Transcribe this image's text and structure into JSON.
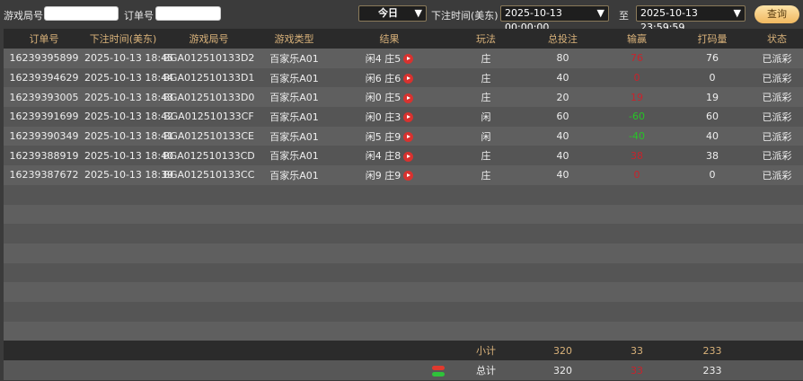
{
  "filters": {
    "game_round_label": "游戏局号",
    "game_round_value": "",
    "order_label": "订单号",
    "order_value": "",
    "period": "今日",
    "bet_time_label": "下注时间(美东)",
    "start": "2025-10-13 00:00:00",
    "to_label": "至",
    "end": "2025-10-13 23:59:59",
    "query_button": "查询"
  },
  "columns": [
    "订单号",
    "下注时间(美东)",
    "游戏局号",
    "游戏类型",
    "结果",
    "玩法",
    "总投注",
    "输赢",
    "打码量",
    "状态"
  ],
  "rows": [
    {
      "order": "16239395899",
      "time": "2025-10-13 18:45",
      "round": "BGA012510133D2",
      "type": "百家乐A01",
      "result": "闲4 庄5",
      "play": "庄",
      "bet": "80",
      "win": "76",
      "valid": "76",
      "status": "已派彩"
    },
    {
      "order": "16239394629",
      "time": "2025-10-13 18:44",
      "round": "BGA012510133D1",
      "type": "百家乐A01",
      "result": "闲6 庄6",
      "play": "庄",
      "bet": "40",
      "win": "0",
      "valid": "0",
      "status": "已派彩"
    },
    {
      "order": "16239393005",
      "time": "2025-10-13 18:43",
      "round": "BGA012510133D0",
      "type": "百家乐A01",
      "result": "闲0 庄5",
      "play": "庄",
      "bet": "20",
      "win": "19",
      "valid": "19",
      "status": "已派彩"
    },
    {
      "order": "16239391699",
      "time": "2025-10-13 18:42",
      "round": "BGA012510133CF",
      "type": "百家乐A01",
      "result": "闲0 庄3",
      "play": "闲",
      "bet": "60",
      "win": "-60",
      "valid": "60",
      "status": "已派彩"
    },
    {
      "order": "16239390349",
      "time": "2025-10-13 18:41",
      "round": "BGA012510133CE",
      "type": "百家乐A01",
      "result": "闲5 庄9",
      "play": "闲",
      "bet": "40",
      "win": "-40",
      "valid": "40",
      "status": "已派彩"
    },
    {
      "order": "16239388919",
      "time": "2025-10-13 18:40",
      "round": "BGA012510133CD",
      "type": "百家乐A01",
      "result": "闲4 庄8",
      "play": "庄",
      "bet": "40",
      "win": "38",
      "valid": "38",
      "status": "已派彩"
    },
    {
      "order": "16239387672",
      "time": "2025-10-13 18:39",
      "round": "BGA012510133CC",
      "type": "百家乐A01",
      "result": "闲9 庄9",
      "play": "庄",
      "bet": "40",
      "win": "0",
      "valid": "0",
      "status": "已派彩"
    }
  ],
  "subtotal": {
    "label": "小计",
    "bet": "320",
    "win": "33",
    "valid": "233"
  },
  "total": {
    "label": "总计",
    "bet": "320",
    "win": "33",
    "valid": "233"
  },
  "colors": {
    "win": "#c8232c",
    "loss": "#27c427",
    "header_text": "#d9b27a"
  }
}
